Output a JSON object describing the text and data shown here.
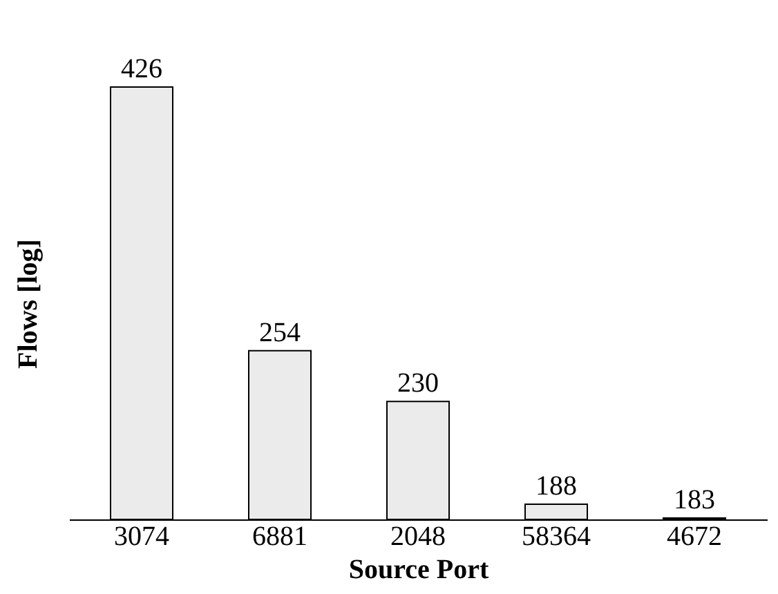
{
  "chart_data": {
    "type": "bar",
    "xlabel": "Source Port",
    "ylabel": "Flows [log]",
    "categories": [
      "3074",
      "6881",
      "2048",
      "58364",
      "4672"
    ],
    "values": [
      426,
      254,
      230,
      188,
      183
    ],
    "color": "#ebebeb",
    "log": true,
    "ylim": [
      182.5,
      426
    ],
    "tick_labels": "x",
    "data_labels": true
  }
}
